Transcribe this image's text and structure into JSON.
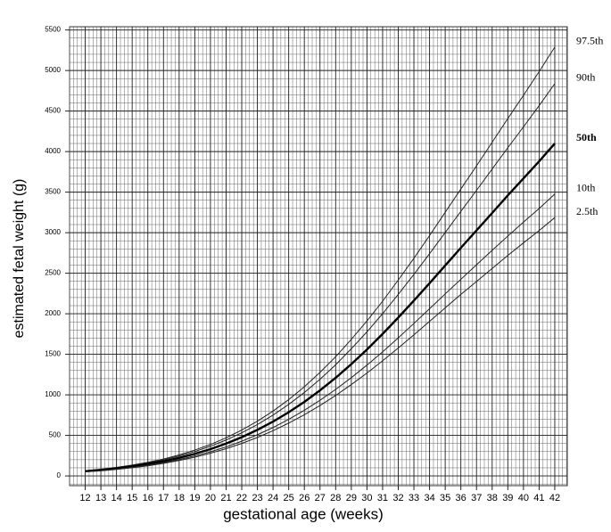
{
  "chart_data": {
    "type": "line",
    "xlabel": "gestational age (weeks)",
    "ylabel": "estimated fetal weight (g)",
    "x": [
      12,
      13,
      14,
      15,
      16,
      17,
      18,
      19,
      20,
      21,
      22,
      23,
      24,
      25,
      26,
      27,
      28,
      29,
      30,
      31,
      32,
      33,
      34,
      35,
      36,
      37,
      38,
      39,
      40,
      41,
      42
    ],
    "series": [
      {
        "name": "97.5th",
        "color": "#222222",
        "emphasis": false,
        "values": [
          66,
          83,
          106,
          134,
          168,
          209,
          259,
          319,
          388,
          470,
          566,
          675,
          800,
          941,
          1100,
          1277,
          1470,
          1684,
          1911,
          2155,
          2416,
          2685,
          2964,
          3252,
          3539,
          3824,
          4115,
          4408,
          4694,
          4986,
          5289
        ]
      },
      {
        "name": "90th",
        "color": "#222222",
        "emphasis": false,
        "values": [
          63,
          79,
          101,
          128,
          160,
          199,
          245,
          301,
          366,
          443,
          532,
          634,
          750,
          882,
          1029,
          1192,
          1371,
          1568,
          1777,
          2001,
          2240,
          2486,
          2741,
          3002,
          3263,
          3522,
          3785,
          4048,
          4305,
          4567,
          4838
        ]
      },
      {
        "name": "50th",
        "color": "#000000",
        "emphasis": true,
        "values": [
          58,
          73,
          93,
          117,
          146,
          181,
          223,
          273,
          331,
          399,
          478,
          568,
          670,
          785,
          913,
          1055,
          1210,
          1379,
          1559,
          1751,
          1953,
          2162,
          2377,
          2595,
          2813,
          3028,
          3243,
          3460,
          3670,
          3880,
          4100
        ]
      },
      {
        "name": "10th",
        "color": "#222222",
        "emphasis": false,
        "values": [
          53,
          67,
          85,
          107,
          133,
          164,
          202,
          247,
          298,
          358,
          428,
          508,
          597,
          698,
          809,
          933,
          1067,
          1212,
          1367,
          1530,
          1703,
          1881,
          2061,
          2245,
          2425,
          2604,
          2783,
          2958,
          3131,
          3298,
          3477
        ]
      },
      {
        "name": "2.5th",
        "color": "#222222",
        "emphasis": false,
        "values": [
          50,
          63,
          80,
          101,
          125,
          155,
          190,
          232,
          280,
          336,
          401,
          475,
          558,
          652,
          755,
          869,
          992,
          1127,
          1269,
          1420,
          1578,
          1740,
          1906,
          2073,
          2239,
          2398,
          2559,
          2720,
          2874,
          3026,
          3186
        ]
      }
    ],
    "xlim": [
      11,
      42.8
    ],
    "ylim": [
      -120,
      5540
    ],
    "xticks": [
      12,
      13,
      14,
      15,
      16,
      17,
      18,
      19,
      20,
      21,
      22,
      23,
      24,
      25,
      26,
      27,
      28,
      29,
      30,
      31,
      32,
      33,
      34,
      35,
      36,
      37,
      38,
      39,
      40,
      41,
      42
    ],
    "yticks": [
      0,
      500,
      1000,
      1500,
      2000,
      2500,
      3000,
      3500,
      4000,
      4500,
      5000,
      5500
    ],
    "grid": true,
    "minor_grid": {
      "x": 4,
      "y": 5
    },
    "legend": "right"
  }
}
